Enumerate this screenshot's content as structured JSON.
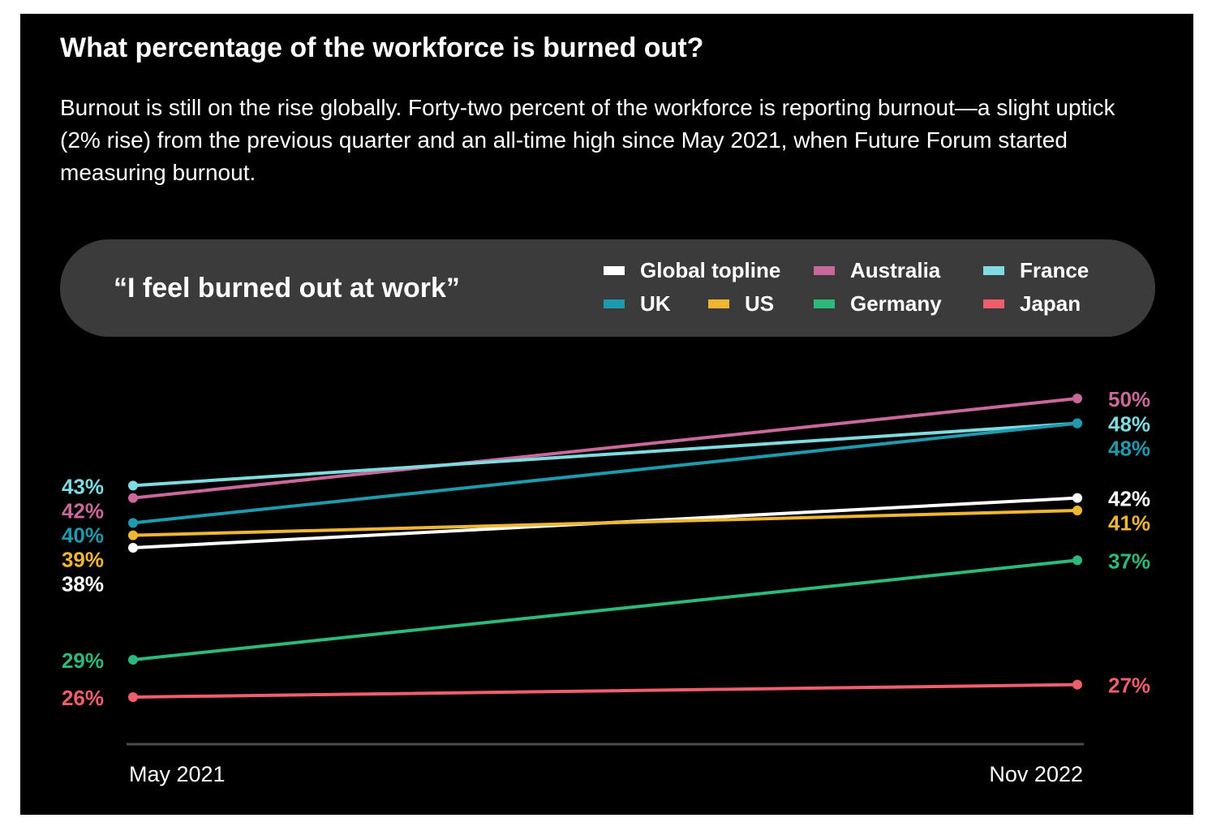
{
  "header": {
    "title": "What percentage of the workforce is burned out?",
    "subtitle": "Burnout is still on the rise globally. Forty-two percent of the workforce is reporting burnout—a slight uptick (2% rise) from the previous quarter and an all-time high since May 2021, when Future Forum started measuring burnout."
  },
  "legend": {
    "quote": "“I feel burned out at work”"
  },
  "chart_data": {
    "type": "line",
    "title": "What percentage of the workforce is burned out?",
    "subtitle": "“I feel burned out at work”",
    "x": [
      "May 2021",
      "Nov 2022"
    ],
    "ylim": [
      26,
      50
    ],
    "grid": false,
    "legend_position": "top",
    "series": [
      {
        "name": "Global topline",
        "color": "#ffffff",
        "values": [
          38,
          42
        ],
        "labels": [
          "38%",
          "42%"
        ]
      },
      {
        "name": "Australia",
        "color": "#c9689b",
        "values": [
          42,
          50
        ],
        "labels": [
          "42%",
          "50%"
        ]
      },
      {
        "name": "France",
        "color": "#7fdbe0",
        "values": [
          43,
          48
        ],
        "labels": [
          "43%",
          "48%"
        ]
      },
      {
        "name": "UK",
        "color": "#1f99ad",
        "values": [
          40,
          48
        ],
        "labels": [
          "40%",
          "48%"
        ]
      },
      {
        "name": "US",
        "color": "#efb634",
        "values": [
          39,
          41
        ],
        "labels": [
          "39%",
          "41%"
        ]
      },
      {
        "name": "Germany",
        "color": "#2eb87a",
        "values": [
          29,
          37
        ],
        "labels": [
          "29%",
          "37%"
        ]
      },
      {
        "name": "Japan",
        "color": "#ef5f6b",
        "values": [
          26,
          27
        ],
        "labels": [
          "26%",
          "27%"
        ]
      }
    ]
  }
}
